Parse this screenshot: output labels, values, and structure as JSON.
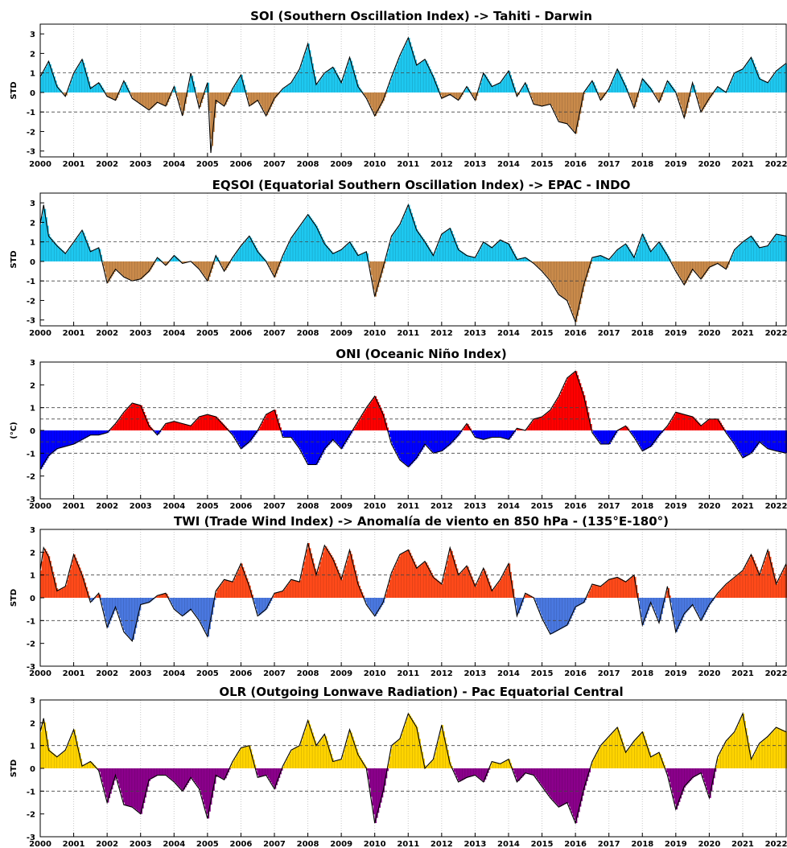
{
  "chart_data": [
    {
      "type": "area",
      "title": "SOI (Southern Oscillation Index) -> Tahiti - Darwin",
      "ylabel": "STD",
      "xlim": [
        2000,
        2022.3
      ],
      "ylim": [
        -3.3,
        3.5
      ],
      "yticks": [
        -3,
        -2,
        -1,
        0,
        1,
        2,
        3
      ],
      "xticks": [
        2000,
        2001,
        2002,
        2003,
        2004,
        2005,
        2006,
        2007,
        2008,
        2009,
        2010,
        2011,
        2012,
        2013,
        2014,
        2015,
        2016,
        2017,
        2018,
        2019,
        2020,
        2021,
        2022
      ],
      "reference_lines": [
        -1,
        1
      ],
      "positive_color": "#1ec8f0",
      "negative_color": "#c98a4b",
      "grid": true,
      "x": [
        2000.0,
        2000.25,
        2000.5,
        2000.75,
        2001.0,
        2001.25,
        2001.5,
        2001.75,
        2002.0,
        2002.25,
        2002.5,
        2002.75,
        2003.0,
        2003.25,
        2003.5,
        2003.75,
        2004.0,
        2004.25,
        2004.5,
        2004.75,
        2005.0,
        2005.1,
        2005.25,
        2005.5,
        2005.75,
        2006.0,
        2006.25,
        2006.5,
        2006.75,
        2007.0,
        2007.25,
        2007.5,
        2007.75,
        2008.0,
        2008.25,
        2008.5,
        2008.75,
        2009.0,
        2009.25,
        2009.5,
        2009.75,
        2010.0,
        2010.25,
        2010.5,
        2010.75,
        2011.0,
        2011.25,
        2011.5,
        2011.75,
        2012.0,
        2012.25,
        2012.5,
        2012.75,
        2013.0,
        2013.25,
        2013.5,
        2013.75,
        2014.0,
        2014.25,
        2014.5,
        2014.75,
        2015.0,
        2015.25,
        2015.5,
        2015.75,
        2016.0,
        2016.25,
        2016.5,
        2016.75,
        2017.0,
        2017.25,
        2017.5,
        2017.75,
        2018.0,
        2018.25,
        2018.5,
        2018.75,
        2019.0,
        2019.25,
        2019.5,
        2019.75,
        2020.0,
        2020.25,
        2020.5,
        2020.75,
        2021.0,
        2021.25,
        2021.5,
        2021.75,
        2022.0,
        2022.3
      ],
      "y": [
        0.8,
        1.6,
        0.3,
        -0.2,
        1.0,
        1.7,
        0.2,
        0.5,
        -0.2,
        -0.4,
        0.6,
        -0.3,
        -0.6,
        -0.9,
        -0.5,
        -0.7,
        0.3,
        -1.2,
        1.0,
        -0.8,
        0.5,
        -3.1,
        -0.4,
        -0.7,
        0.2,
        0.9,
        -0.7,
        -0.4,
        -1.2,
        -0.3,
        0.2,
        0.5,
        1.2,
        2.5,
        0.4,
        1.0,
        1.3,
        0.5,
        1.8,
        0.3,
        -0.3,
        -1.2,
        -0.4,
        0.8,
        1.9,
        2.8,
        1.4,
        1.7,
        0.8,
        -0.3,
        -0.1,
        -0.4,
        0.3,
        -0.4,
        1.0,
        0.3,
        0.5,
        1.1,
        -0.2,
        0.5,
        -0.6,
        -0.7,
        -0.6,
        -1.5,
        -1.6,
        -2.1,
        0.0,
        0.6,
        -0.4,
        0.2,
        1.2,
        0.3,
        -0.8,
        0.7,
        0.2,
        -0.5,
        0.6,
        0.0,
        -1.3,
        0.5,
        -1.0,
        -0.3,
        0.3,
        0.0,
        1.0,
        1.2,
        1.8,
        0.7,
        0.5,
        1.1,
        1.5
      ]
    },
    {
      "type": "area",
      "title": "EQSOI (Equatorial Southern Oscillation Index) -> EPAC - INDO",
      "ylabel": "STD",
      "xlim": [
        2000,
        2022.3
      ],
      "ylim": [
        -3.3,
        3.5
      ],
      "yticks": [
        -3,
        -2,
        -1,
        0,
        1,
        2,
        3
      ],
      "xticks": [
        2000,
        2001,
        2002,
        2003,
        2004,
        2005,
        2006,
        2007,
        2008,
        2009,
        2010,
        2011,
        2012,
        2013,
        2014,
        2015,
        2016,
        2017,
        2018,
        2019,
        2020,
        2021,
        2022
      ],
      "reference_lines": [
        -1,
        1
      ],
      "positive_color": "#1ec8f0",
      "negative_color": "#c98a4b",
      "grid": true,
      "x": [
        2000.0,
        2000.1,
        2000.25,
        2000.5,
        2000.75,
        2001.0,
        2001.25,
        2001.5,
        2001.75,
        2002.0,
        2002.25,
        2002.5,
        2002.75,
        2003.0,
        2003.25,
        2003.5,
        2003.75,
        2004.0,
        2004.25,
        2004.5,
        2004.75,
        2005.0,
        2005.25,
        2005.5,
        2005.75,
        2006.0,
        2006.25,
        2006.5,
        2006.75,
        2007.0,
        2007.25,
        2007.5,
        2007.75,
        2008.0,
        2008.25,
        2008.5,
        2008.75,
        2009.0,
        2009.25,
        2009.5,
        2009.75,
        2010.0,
        2010.25,
        2010.5,
        2010.75,
        2011.0,
        2011.25,
        2011.5,
        2011.75,
        2012.0,
        2012.25,
        2012.5,
        2012.75,
        2013.0,
        2013.25,
        2013.5,
        2013.75,
        2014.0,
        2014.25,
        2014.5,
        2014.75,
        2015.0,
        2015.25,
        2015.5,
        2015.75,
        2016.0,
        2016.25,
        2016.5,
        2016.75,
        2017.0,
        2017.25,
        2017.5,
        2017.75,
        2018.0,
        2018.25,
        2018.5,
        2018.75,
        2019.0,
        2019.25,
        2019.5,
        2019.75,
        2020.0,
        2020.25,
        2020.5,
        2020.75,
        2021.0,
        2021.25,
        2021.5,
        2021.75,
        2022.0,
        2022.3
      ],
      "y": [
        1.9,
        2.9,
        1.3,
        0.8,
        0.4,
        1.0,
        1.6,
        0.5,
        0.7,
        -1.1,
        -0.4,
        -0.8,
        -1.0,
        -0.9,
        -0.5,
        0.2,
        -0.2,
        0.3,
        -0.1,
        0.0,
        -0.4,
        -1.0,
        0.3,
        -0.5,
        0.2,
        0.8,
        1.3,
        0.5,
        0.0,
        -0.8,
        0.3,
        1.2,
        1.8,
        2.4,
        1.8,
        0.9,
        0.4,
        0.6,
        1.0,
        0.3,
        0.5,
        -1.8,
        -0.3,
        1.3,
        1.9,
        2.9,
        1.6,
        1.0,
        0.3,
        1.4,
        1.7,
        0.6,
        0.3,
        0.2,
        1.0,
        0.7,
        1.1,
        0.9,
        0.1,
        0.2,
        -0.1,
        -0.5,
        -1.0,
        -1.7,
        -2.0,
        -3.1,
        -1.2,
        0.2,
        0.3,
        0.1,
        0.6,
        0.9,
        0.2,
        1.4,
        0.5,
        1.0,
        0.3,
        -0.5,
        -1.2,
        -0.4,
        -0.9,
        -0.3,
        -0.1,
        -0.4,
        0.6,
        1.0,
        1.3,
        0.7,
        0.8,
        1.4,
        1.3
      ]
    },
    {
      "type": "area",
      "title": "ONI (Oceanic Niño Index)",
      "ylabel": "(°C)",
      "xlim": [
        2000,
        2022.3
      ],
      "ylim": [
        -3,
        3
      ],
      "yticks": [
        -3,
        -2,
        -1,
        0,
        1,
        2,
        3
      ],
      "xticks": [
        2000,
        2001,
        2002,
        2003,
        2004,
        2005,
        2006,
        2007,
        2008,
        2009,
        2010,
        2011,
        2012,
        2013,
        2014,
        2015,
        2016,
        2017,
        2018,
        2019,
        2020,
        2021,
        2022
      ],
      "reference_lines": [
        -1,
        -0.5,
        0.5,
        1
      ],
      "positive_color": "#ff0000",
      "negative_color": "#0000ff",
      "grid": true,
      "x": [
        2000.0,
        2000.25,
        2000.5,
        2000.75,
        2001.0,
        2001.25,
        2001.5,
        2001.75,
        2002.0,
        2002.25,
        2002.5,
        2002.75,
        2003.0,
        2003.25,
        2003.5,
        2003.75,
        2004.0,
        2004.25,
        2004.5,
        2004.75,
        2005.0,
        2005.25,
        2005.5,
        2005.75,
        2006.0,
        2006.25,
        2006.5,
        2006.75,
        2007.0,
        2007.25,
        2007.5,
        2007.75,
        2008.0,
        2008.25,
        2008.5,
        2008.75,
        2009.0,
        2009.25,
        2009.5,
        2009.75,
        2010.0,
        2010.25,
        2010.5,
        2010.75,
        2011.0,
        2011.25,
        2011.5,
        2011.75,
        2012.0,
        2012.25,
        2012.5,
        2012.75,
        2013.0,
        2013.25,
        2013.5,
        2013.75,
        2014.0,
        2014.25,
        2014.5,
        2014.75,
        2015.0,
        2015.25,
        2015.5,
        2015.75,
        2016.0,
        2016.25,
        2016.5,
        2016.75,
        2017.0,
        2017.25,
        2017.5,
        2017.75,
        2018.0,
        2018.25,
        2018.5,
        2018.75,
        2019.0,
        2019.25,
        2019.5,
        2019.75,
        2020.0,
        2020.25,
        2020.5,
        2020.75,
        2021.0,
        2021.25,
        2021.5,
        2021.75,
        2022.0,
        2022.3
      ],
      "y": [
        -1.7,
        -1.1,
        -0.8,
        -0.7,
        -0.6,
        -0.4,
        -0.2,
        -0.2,
        -0.1,
        0.3,
        0.8,
        1.2,
        1.1,
        0.2,
        -0.2,
        0.3,
        0.4,
        0.3,
        0.2,
        0.6,
        0.7,
        0.6,
        0.2,
        -0.2,
        -0.8,
        -0.5,
        0.0,
        0.7,
        0.9,
        -0.3,
        -0.3,
        -0.8,
        -1.5,
        -1.5,
        -0.8,
        -0.4,
        -0.8,
        -0.2,
        0.4,
        1.0,
        1.5,
        0.7,
        -0.6,
        -1.3,
        -1.6,
        -1.2,
        -0.6,
        -1.0,
        -0.9,
        -0.6,
        -0.2,
        0.3,
        -0.3,
        -0.4,
        -0.3,
        -0.3,
        -0.4,
        0.1,
        0.0,
        0.5,
        0.6,
        0.9,
        1.5,
        2.3,
        2.6,
        1.5,
        -0.1,
        -0.6,
        -0.6,
        0.0,
        0.2,
        -0.3,
        -0.9,
        -0.7,
        -0.2,
        0.2,
        0.8,
        0.7,
        0.6,
        0.2,
        0.5,
        0.5,
        -0.1,
        -0.6,
        -1.2,
        -1.0,
        -0.5,
        -0.8,
        -0.9,
        -1.0
      ]
    },
    {
      "type": "area",
      "title": "TWI (Trade Wind Index) -> Anomalía de viento en 850 hPa - (135°E-180°)",
      "ylabel": "STD",
      "xlim": [
        2000,
        2022.3
      ],
      "ylim": [
        -3,
        3
      ],
      "yticks": [
        -3,
        -2,
        -1,
        0,
        1,
        2,
        3
      ],
      "xticks": [
        2000,
        2001,
        2002,
        2003,
        2004,
        2005,
        2006,
        2007,
        2008,
        2009,
        2010,
        2011,
        2012,
        2013,
        2014,
        2015,
        2016,
        2017,
        2018,
        2019,
        2020,
        2021,
        2022
      ],
      "reference_lines": [
        -1,
        1
      ],
      "positive_color": "#ff4a1a",
      "negative_color": "#4a78e0",
      "grid": true,
      "x": [
        2000.0,
        2000.1,
        2000.25,
        2000.5,
        2000.75,
        2001.0,
        2001.25,
        2001.5,
        2001.75,
        2002.0,
        2002.25,
        2002.5,
        2002.75,
        2003.0,
        2003.25,
        2003.5,
        2003.75,
        2004.0,
        2004.25,
        2004.5,
        2004.75,
        2005.0,
        2005.25,
        2005.5,
        2005.75,
        2006.0,
        2006.25,
        2006.5,
        2006.75,
        2007.0,
        2007.25,
        2007.5,
        2007.75,
        2008.0,
        2008.25,
        2008.5,
        2008.75,
        2009.0,
        2009.25,
        2009.5,
        2009.75,
        2010.0,
        2010.25,
        2010.5,
        2010.75,
        2011.0,
        2011.25,
        2011.5,
        2011.75,
        2012.0,
        2012.25,
        2012.5,
        2012.75,
        2013.0,
        2013.25,
        2013.5,
        2013.75,
        2014.0,
        2014.25,
        2014.5,
        2014.75,
        2015.0,
        2015.25,
        2015.5,
        2015.75,
        2016.0,
        2016.25,
        2016.5,
        2016.75,
        2017.0,
        2017.25,
        2017.5,
        2017.75,
        2018.0,
        2018.25,
        2018.5,
        2018.75,
        2019.0,
        2019.25,
        2019.5,
        2019.75,
        2020.0,
        2020.25,
        2020.5,
        2020.75,
        2021.0,
        2021.25,
        2021.5,
        2021.75,
        2022.0,
        2022.3
      ],
      "y": [
        1.2,
        2.2,
        1.8,
        0.3,
        0.5,
        1.9,
        1.0,
        -0.2,
        0.2,
        -1.3,
        -0.4,
        -1.5,
        -1.9,
        -0.3,
        -0.2,
        0.1,
        0.2,
        -0.5,
        -0.8,
        -0.5,
        -1.0,
        -1.7,
        0.3,
        0.8,
        0.7,
        1.5,
        0.5,
        -0.8,
        -0.5,
        0.2,
        0.3,
        0.8,
        0.7,
        2.4,
        1.0,
        2.3,
        1.7,
        0.8,
        2.1,
        0.6,
        -0.3,
        -0.8,
        -0.2,
        1.1,
        1.9,
        2.1,
        1.3,
        1.6,
        0.9,
        0.6,
        2.2,
        1.0,
        1.4,
        0.5,
        1.3,
        0.3,
        0.8,
        1.5,
        -0.8,
        0.2,
        0.0,
        -0.9,
        -1.6,
        -1.4,
        -1.2,
        -0.4,
        -0.2,
        0.6,
        0.5,
        0.8,
        0.9,
        0.7,
        1.0,
        -1.2,
        -0.2,
        -1.1,
        0.5,
        -1.5,
        -0.7,
        -0.3,
        -1.0,
        -0.3,
        0.2,
        0.6,
        0.9,
        1.2,
        1.9,
        1.0,
        2.1,
        0.6,
        1.5
      ]
    },
    {
      "type": "area",
      "title": "OLR (Outgoing Lonwave Radiation) - Pac Equatorial Central",
      "ylabel": "STD",
      "xlim": [
        2000,
        2022.3
      ],
      "ylim": [
        -3,
        3
      ],
      "yticks": [
        -3,
        -2,
        -1,
        0,
        1,
        2,
        3
      ],
      "xticks": [
        2000,
        2001,
        2002,
        2003,
        2004,
        2005,
        2006,
        2007,
        2008,
        2009,
        2010,
        2011,
        2012,
        2013,
        2014,
        2015,
        2016,
        2017,
        2018,
        2019,
        2020,
        2021,
        2022
      ],
      "reference_lines": [
        -1,
        1
      ],
      "positive_color": "#ffd400",
      "negative_color": "#8b008b",
      "grid": true,
      "x": [
        2000.0,
        2000.1,
        2000.25,
        2000.5,
        2000.75,
        2001.0,
        2001.25,
        2001.5,
        2001.75,
        2002.0,
        2002.25,
        2002.5,
        2002.75,
        2003.0,
        2003.25,
        2003.5,
        2003.75,
        2004.0,
        2004.25,
        2004.5,
        2004.75,
        2005.0,
        2005.25,
        2005.5,
        2005.75,
        2006.0,
        2006.25,
        2006.5,
        2006.75,
        2007.0,
        2007.25,
        2007.5,
        2007.75,
        2008.0,
        2008.25,
        2008.5,
        2008.75,
        2009.0,
        2009.25,
        2009.5,
        2009.75,
        2010.0,
        2010.25,
        2010.5,
        2010.75,
        2011.0,
        2011.25,
        2011.5,
        2011.75,
        2012.0,
        2012.25,
        2012.5,
        2012.75,
        2013.0,
        2013.25,
        2013.5,
        2013.75,
        2014.0,
        2014.25,
        2014.5,
        2014.75,
        2015.0,
        2015.25,
        2015.5,
        2015.75,
        2016.0,
        2016.25,
        2016.5,
        2016.75,
        2017.0,
        2017.25,
        2017.5,
        2017.75,
        2018.0,
        2018.25,
        2018.5,
        2018.75,
        2019.0,
        2019.25,
        2019.5,
        2019.75,
        2020.0,
        2020.25,
        2020.5,
        2020.75,
        2021.0,
        2021.25,
        2021.5,
        2021.75,
        2022.0,
        2022.3
      ],
      "y": [
        1.6,
        2.2,
        0.8,
        0.5,
        0.8,
        1.7,
        0.1,
        0.3,
        -0.1,
        -1.5,
        -0.3,
        -1.6,
        -1.7,
        -2.0,
        -0.5,
        -0.3,
        -0.3,
        -0.6,
        -1.0,
        -0.4,
        -0.9,
        -2.2,
        -0.3,
        -0.5,
        0.3,
        0.9,
        1.0,
        -0.4,
        -0.3,
        -0.9,
        0.1,
        0.8,
        1.0,
        2.1,
        1.0,
        1.5,
        0.3,
        0.4,
        1.7,
        0.6,
        0.0,
        -2.4,
        -1.0,
        1.0,
        1.3,
        2.4,
        1.8,
        0.0,
        0.4,
        1.9,
        0.2,
        -0.6,
        -0.4,
        -0.3,
        -0.6,
        0.3,
        0.2,
        0.4,
        -0.6,
        -0.2,
        -0.3,
        -0.8,
        -1.3,
        -1.7,
        -1.5,
        -2.4,
        -0.9,
        0.3,
        1.0,
        1.4,
        1.8,
        0.7,
        1.2,
        1.6,
        0.5,
        0.7,
        -0.3,
        -1.8,
        -0.8,
        -0.4,
        -0.2,
        -1.3,
        0.5,
        1.2,
        1.6,
        2.4,
        0.4,
        1.1,
        1.4,
        1.8,
        1.6
      ]
    }
  ]
}
